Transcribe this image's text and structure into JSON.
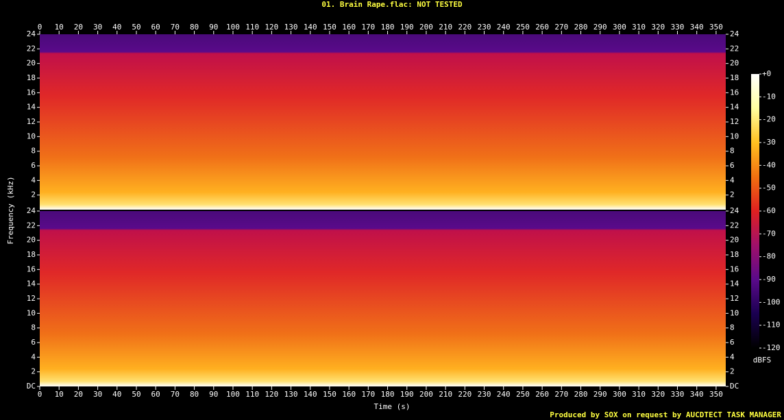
{
  "chart_data": {
    "type": "spectrogram",
    "title": "01. Brain Rape.flac: NOT TESTED",
    "xlabel": "Time (s)",
    "ylabel": "Frequency (kHz)",
    "xlim": [
      0,
      355
    ],
    "xticks": [
      0,
      10,
      20,
      30,
      40,
      50,
      60,
      70,
      80,
      90,
      100,
      110,
      120,
      130,
      140,
      150,
      160,
      170,
      180,
      190,
      200,
      210,
      220,
      230,
      240,
      250,
      260,
      270,
      280,
      290,
      300,
      310,
      320,
      330,
      340,
      350
    ],
    "ylim": [
      0,
      24
    ],
    "yticks": [
      {
        "value": 0,
        "label": "DC"
      },
      2,
      4,
      6,
      8,
      10,
      12,
      14,
      16,
      18,
      20,
      22,
      24
    ],
    "colorbar": {
      "label": "dBFS",
      "lim": [
        -120,
        0
      ],
      "ticks": [
        {
          "value": 0,
          "label": "+0"
        },
        -10,
        -20,
        -30,
        -40,
        -50,
        -60,
        -70,
        -80,
        -90,
        -100,
        -110,
        -120
      ],
      "colors": [
        "#000000",
        "#1a0050",
        "#5a0a8a",
        "#a0106a",
        "#e02020",
        "#f07010",
        "#ffc020",
        "#ffffa0",
        "#ffffff"
      ]
    },
    "footer": "Produced by SOX on request by AUCDTECT TASK MANAGER"
  }
}
